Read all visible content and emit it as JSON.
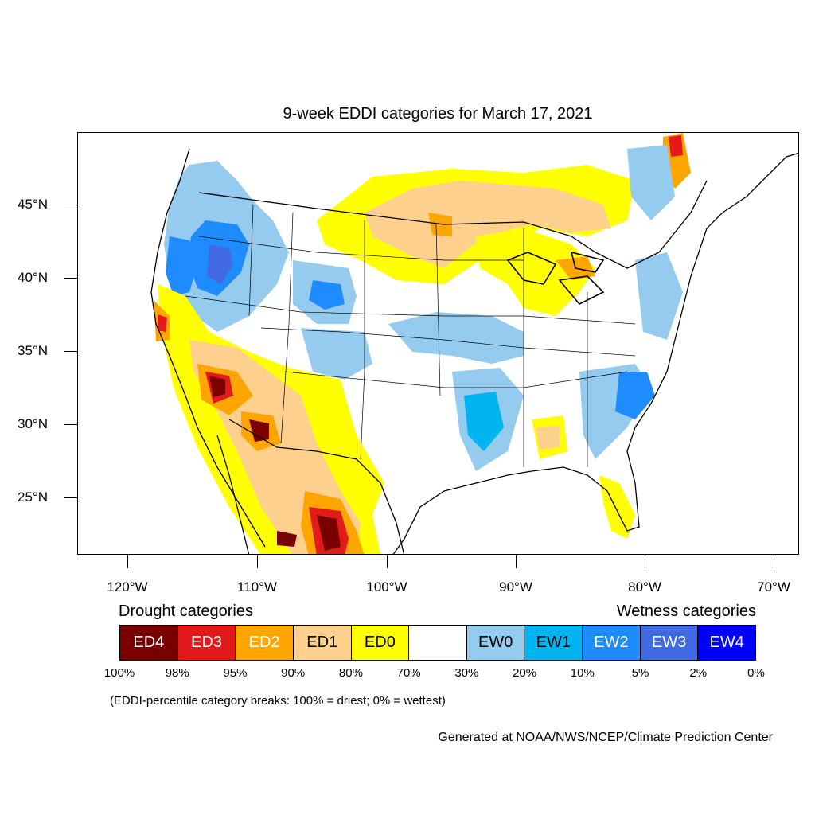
{
  "title": "9-week EDDI categories for March 17, 2021",
  "lat_labels": [
    "45°N",
    "40°N",
    "35°N",
    "30°N",
    "25°N"
  ],
  "lon_labels": [
    "120°W",
    "110°W",
    "100°W",
    "90°W",
    "80°W",
    "70°W"
  ],
  "legend": {
    "drought_title": "Drought categories",
    "wetness_title": "Wetness categories",
    "categories": [
      {
        "label": "ED4",
        "color": "#7a0000",
        "text_color": "#ffffff"
      },
      {
        "label": "ED3",
        "color": "#e31a1c",
        "text_color": "#ffffff"
      },
      {
        "label": "ED2",
        "color": "#ffa500",
        "text_color": "#ffffff"
      },
      {
        "label": "ED1",
        "color": "#fdd08e",
        "text_color": "#000000"
      },
      {
        "label": "ED0",
        "color": "#ffff00",
        "text_color": "#000000"
      },
      {
        "label": "",
        "color": "#ffffff",
        "text_color": "#000000"
      },
      {
        "label": "EW0",
        "color": "#94cbee",
        "text_color": "#000000"
      },
      {
        "label": "EW1",
        "color": "#00b4f0",
        "text_color": "#000000"
      },
      {
        "label": "EW2",
        "color": "#1e8cff",
        "text_color": "#ffffff"
      },
      {
        "label": "EW3",
        "color": "#4169e1",
        "text_color": "#ffffff"
      },
      {
        "label": "EW4",
        "color": "#0000ff",
        "text_color": "#ffffff"
      }
    ],
    "breaks": [
      "100%",
      "98%",
      "95%",
      "90%",
      "80%",
      "70%",
      "30%",
      "20%",
      "10%",
      "5%",
      "2%",
      "0%"
    ]
  },
  "footnote": "(EDDI-percentile category breaks: 100% = driest; 0% = wettest)",
  "credit": "Generated at NOAA/NWS/NCEP/Climate Prediction Center"
}
